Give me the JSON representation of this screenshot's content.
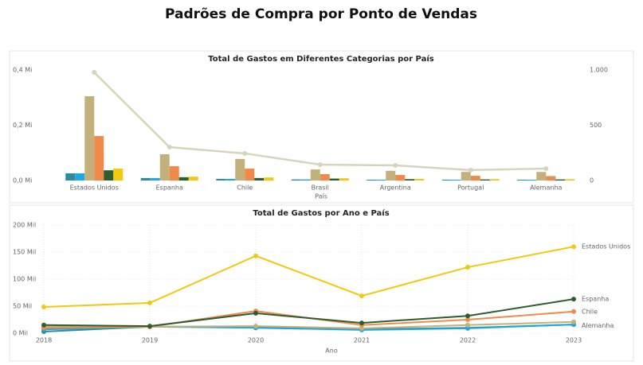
{
  "header": {
    "title": "Padrões de Compra por Ponto de Vendas"
  },
  "chart_data": [
    {
      "type": "bar",
      "title": "Total de Gastos em Diferentes Categorias por País",
      "x_label": "País",
      "categories": [
        "Estados Unidos",
        "Espanha",
        "Chile",
        "Brasil",
        "Argentina",
        "Portugal",
        "Alemanha"
      ],
      "ylim": [
        0,
        0.4
      ],
      "yticks": [
        {
          "value": 0,
          "label": "0,0 Mi"
        },
        {
          "value": 0.2,
          "label": "0,2 Mi"
        },
        {
          "value": 0.4,
          "label": "0,4 Mi"
        }
      ],
      "y2lim": [
        0,
        1000
      ],
      "y2ticks": [
        0,
        500,
        {
          "value": 1000,
          "label": "1.000"
        }
      ],
      "series": [
        {
          "color": "#2E8B9A",
          "values": [
            0.026,
            0.009,
            0.006,
            0.004,
            0.003,
            0.003,
            0.003
          ]
        },
        {
          "color": "#1EA7E1",
          "values": [
            0.026,
            0.009,
            0.006,
            0.004,
            0.003,
            0.003,
            0.003
          ]
        },
        {
          "color": "#C4B07B",
          "values": [
            0.305,
            0.095,
            0.078,
            0.04,
            0.035,
            0.031,
            0.031
          ]
        },
        {
          "color": "#F08A4B",
          "values": [
            0.161,
            0.052,
            0.043,
            0.023,
            0.02,
            0.017,
            0.016
          ]
        },
        {
          "color": "#2E5E2E",
          "values": [
            0.037,
            0.012,
            0.009,
            0.007,
            0.005,
            0.004,
            0.004
          ]
        },
        {
          "color": "#F2C811",
          "values": [
            0.043,
            0.014,
            0.011,
            0.008,
            0.006,
            0.005,
            0.005
          ]
        },
        {
          "type": "line",
          "axis": "y2",
          "color": "#D6D5BC",
          "values": [
            978,
            302,
            245,
            144,
            137,
            94,
            108
          ]
        }
      ]
    },
    {
      "type": "line",
      "title": "Total de Gastos por Ano e País",
      "x_label": "Ano",
      "categories": [
        "2018",
        "2019",
        "2020",
        "2021",
        "2022",
        "2023"
      ],
      "ylim": [
        0,
        200
      ],
      "yticks": [
        {
          "value": 0,
          "label": "0 Mil"
        },
        {
          "value": 50,
          "label": "50 Mil"
        },
        {
          "value": 100,
          "label": "100 Mil"
        },
        {
          "value": 150,
          "label": "150 Mil"
        },
        {
          "value": 200,
          "label": "200 Mil"
        }
      ],
      "grid": true,
      "series": [
        {
          "color": "#2E8B9A",
          "values": [
            3,
            12,
            12,
            7,
            10,
            16
          ]
        },
        {
          "color": "#1EA7E1",
          "values": [
            7,
            12,
            10,
            6,
            9,
            16
          ]
        },
        {
          "name": "Alemanha",
          "color": "#C4B07B",
          "values": [
            13,
            12,
            13,
            9,
            15,
            21
          ]
        },
        {
          "name": "Chile",
          "color": "#F08A4B",
          "values": [
            10,
            12,
            41,
            15,
            25,
            40
          ]
        },
        {
          "name": "Espanha",
          "color": "#2E5E2E",
          "values": [
            15,
            13,
            37,
            19,
            32,
            63
          ]
        },
        {
          "name": "Estados Unidos",
          "color": "#F2C811",
          "values": [
            48.5,
            56,
            143,
            69,
            122,
            160
          ]
        }
      ]
    }
  ]
}
